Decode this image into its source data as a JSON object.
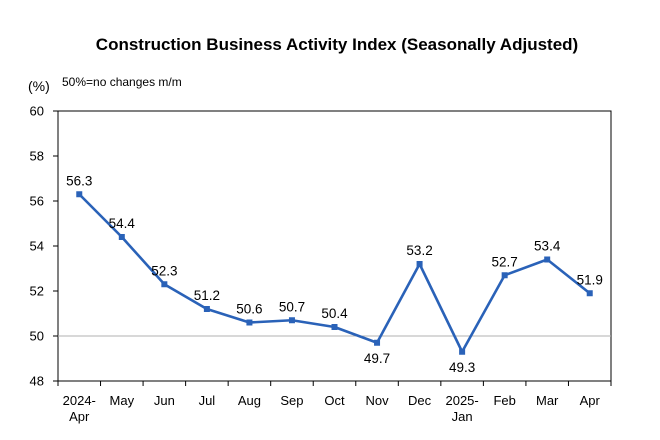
{
  "chart_data": {
    "type": "line",
    "title": "Construction Business Activity Index (Seasonally Adjusted)",
    "unit_label": "(%)",
    "note": "50%=no changes m/m",
    "categories": [
      [
        "2024-",
        "Apr"
      ],
      [
        "May"
      ],
      [
        "Jun"
      ],
      [
        "Jul"
      ],
      [
        "Aug"
      ],
      [
        "Sep"
      ],
      [
        "Oct"
      ],
      [
        "Nov"
      ],
      [
        "Dec"
      ],
      [
        "2025-",
        "Jan"
      ],
      [
        "Feb"
      ],
      [
        "Mar"
      ],
      [
        "Apr"
      ]
    ],
    "values": [
      56.3,
      54.4,
      52.3,
      51.2,
      50.6,
      50.7,
      50.4,
      49.7,
      53.2,
      49.3,
      52.7,
      53.4,
      51.9
    ],
    "data_labels": [
      "56.3",
      "54.4",
      "52.3",
      "51.2",
      "50.6",
      "50.7",
      "50.4",
      "49.7",
      "53.2",
      "49.3",
      "52.7",
      "53.4",
      "51.9"
    ],
    "label_positions": [
      "above",
      "above",
      "above",
      "above",
      "above",
      "above",
      "above",
      "below",
      "above",
      "below",
      "above",
      "above",
      "above"
    ],
    "yticks": [
      "48",
      "50",
      "52",
      "54",
      "56",
      "58",
      "60"
    ],
    "ylim": [
      48,
      60
    ],
    "reference_line": 50,
    "line_color": "#2a62b8",
    "reference_color": "#b0b0b0",
    "grid": false
  }
}
